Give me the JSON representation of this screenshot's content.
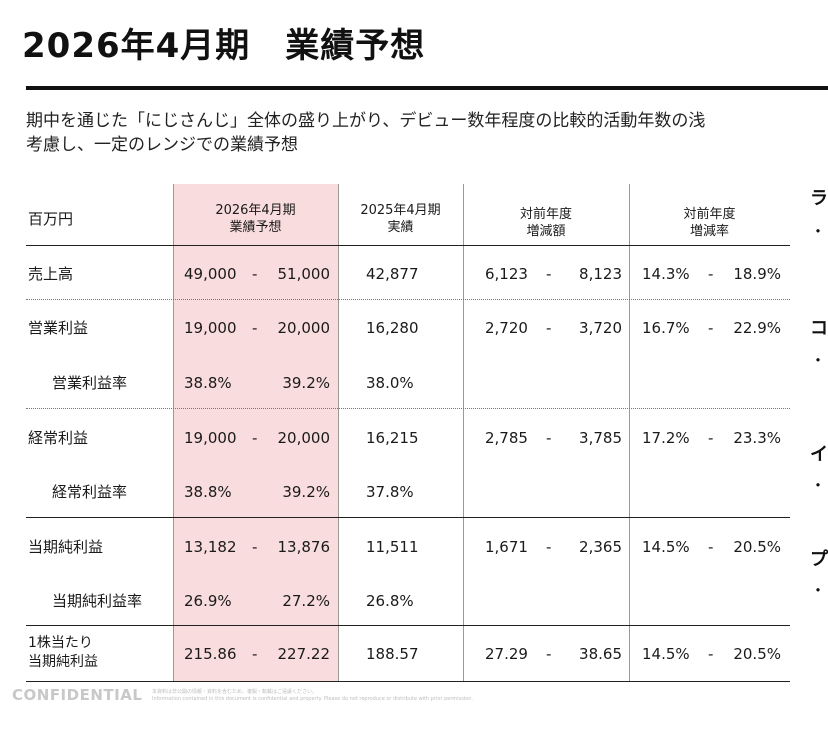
{
  "page": {
    "title": "2026年4月期　業績予想",
    "description_line1": "期中を通じた「にじさんじ」全体の盛り上がり、デビュー数年程度の比較的活動年数の浅",
    "description_line2": "考慮し、一定のレンジでの業績予想"
  },
  "table": {
    "headers": {
      "unit": "百万円",
      "forecast_line1": "2026年4月期",
      "forecast_line2": "業績予想",
      "actual_line1": "2025年4月期",
      "actual_line2": "実績",
      "yoy_amount_line1": "対前年度",
      "yoy_amount_line2": "増減額",
      "yoy_rate_line1": "対前年度",
      "yoy_rate_line2": "増減率"
    },
    "rows": [
      {
        "label": "売上高",
        "f_low": "49,000",
        "f_sep": "-",
        "f_high": "51,000",
        "actual": "42,877",
        "amt_low": "6,123",
        "amt_sep": "-",
        "amt_high": "8,123",
        "rate_low": "14.3%",
        "rate_sep": "-",
        "rate_high": "18.9%"
      },
      {
        "label": "営業利益",
        "f_low": "19,000",
        "f_sep": "-",
        "f_high": "20,000",
        "actual": "16,280",
        "amt_low": "2,720",
        "amt_sep": "-",
        "amt_high": "3,720",
        "rate_low": "16.7%",
        "rate_sep": "-",
        "rate_high": "22.9%"
      },
      {
        "label": "営業利益率",
        "f_low": "38.8%",
        "f_high": "39.2%",
        "actual": "38.0%"
      },
      {
        "label": "経常利益",
        "f_low": "19,000",
        "f_sep": "-",
        "f_high": "20,000",
        "actual": "16,215",
        "amt_low": "2,785",
        "amt_sep": "-",
        "amt_high": "3,785",
        "rate_low": "17.2%",
        "rate_sep": "-",
        "rate_high": "23.3%"
      },
      {
        "label": "経常利益率",
        "f_low": "38.8%",
        "f_high": "39.2%",
        "actual": "37.8%"
      },
      {
        "label": "当期純利益",
        "f_low": "13,182",
        "f_sep": "-",
        "f_high": "13,876",
        "actual": "11,511",
        "amt_low": "1,671",
        "amt_sep": "-",
        "amt_high": "2,365",
        "rate_low": "14.5%",
        "rate_sep": "-",
        "rate_high": "20.5%"
      },
      {
        "label": "当期純利益率",
        "f_low": "26.9%",
        "f_high": "27.2%",
        "actual": "26.8%"
      },
      {
        "label_line1": "1株当たり",
        "label_line2": "当期純利益",
        "f_low": "215.86",
        "f_sep": "-",
        "f_high": "227.22",
        "actual": "188.57",
        "amt_low": "27.29",
        "amt_sep": "-",
        "amt_high": "38.65",
        "rate_low": "14.5%",
        "rate_sep": "-",
        "rate_high": "20.5%"
      }
    ]
  },
  "right_fragments": {
    "heading1": "ラ",
    "heading2": "コ",
    "heading3": "イ",
    "heading4": "プ",
    "bullet": "・"
  },
  "footer": {
    "confidential": "CONFIDENTIAL",
    "note_line1": "本資料は非公開の情報・資料を含むため、複製・転載はご遠慮ください。",
    "note_line2": "Information contained in this document is confidential and property. Please do not reproduce or distribute with prior permission."
  },
  "colors": {
    "highlight": "#f9dcdd",
    "text": "#1a1a1a",
    "rule": "#111111",
    "confidential": "#c8c8c8"
  }
}
